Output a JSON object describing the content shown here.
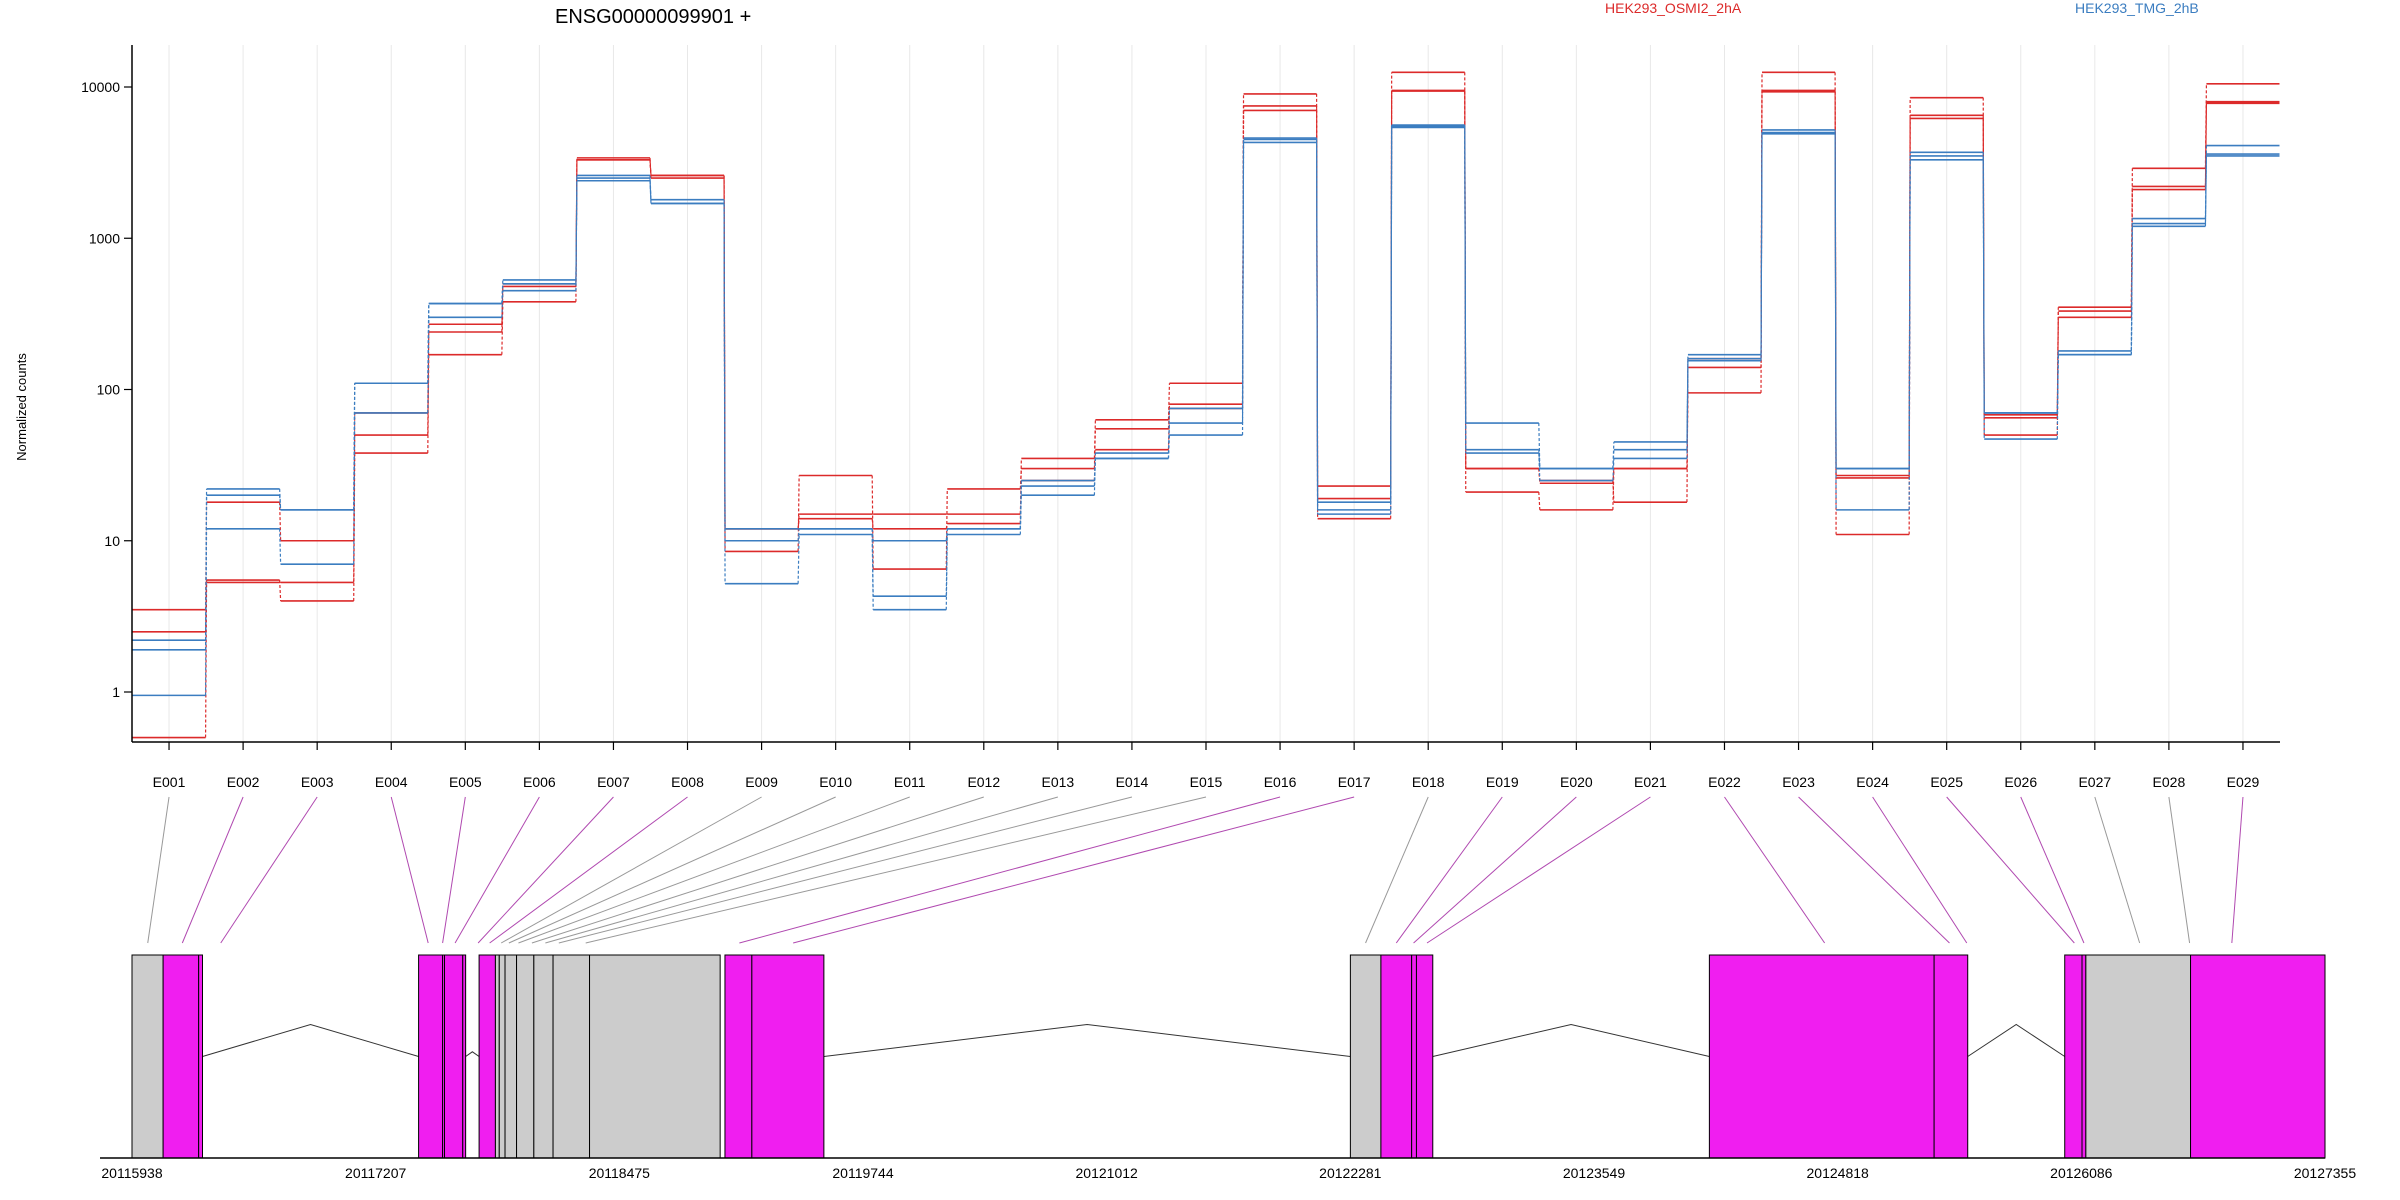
{
  "chart_data": {
    "type": "line",
    "title": "ENSG00000099901 +",
    "ylabel": "Normalized counts",
    "xlabel": "",
    "yscale": "log",
    "ylim": [
      0.5,
      20000
    ],
    "yticks": [
      "1",
      "10",
      "100",
      "1000",
      "10000"
    ],
    "categories": [
      "E001",
      "E002",
      "E003",
      "E004",
      "E005",
      "E006",
      "E007",
      "E008",
      "E009",
      "E010",
      "E011",
      "E012",
      "E013",
      "E014",
      "E015",
      "E016",
      "E017",
      "E018",
      "E019",
      "E020",
      "E021",
      "E022",
      "E023",
      "E024",
      "E025",
      "E026",
      "E027",
      "E028",
      "E029"
    ],
    "legend": [
      {
        "name": "HEK293_OSMI2_2hA",
        "color": "#dc2a2a"
      },
      {
        "name": "HEK293_TMG_2hB",
        "color": "#3b7dc0"
      }
    ],
    "series": [
      {
        "name": "HEK293_OSMI2_2hA",
        "group": 0,
        "values": [
          0.5,
          5.3,
          5.3,
          50,
          240,
          480,
          3300,
          2500,
          12,
          15,
          15,
          15,
          25,
          40,
          75,
          7500,
          19,
          9500,
          30,
          25,
          18,
          160,
          9500,
          27,
          6500,
          68,
          350,
          2100,
          8000
        ]
      },
      {
        "name": "HEK293_OSMI2_2hA",
        "group": 0,
        "values": [
          2.5,
          5.5,
          4.0,
          38,
          170,
          380,
          3400,
          2600,
          8.5,
          27,
          6.5,
          22,
          30,
          55,
          80,
          7000,
          23,
          9400,
          21,
          16,
          30,
          95,
          9300,
          11,
          6200,
          65,
          300,
          2200,
          7800
        ]
      },
      {
        "name": "HEK293_OSMI2_2hA",
        "group": 0,
        "values": [
          3.5,
          18,
          10,
          70,
          270,
          500,
          3300,
          2600,
          12,
          14,
          12,
          13,
          35,
          63,
          110,
          9000,
          14,
          12500,
          30,
          24,
          30,
          140,
          12500,
          26,
          8500,
          50,
          330,
          2900,
          10500
        ]
      },
      {
        "name": "HEK293_TMG_2hB",
        "group": 1,
        "values": [
          0.95,
          20,
          16,
          110,
          370,
          500,
          2600,
          1800,
          12,
          12,
          3.5,
          11,
          23,
          35,
          50,
          4300,
          15,
          5400,
          60,
          30,
          45,
          160,
          4900,
          30,
          3500,
          70,
          170,
          1200,
          3600
        ]
      },
      {
        "name": "HEK293_TMG_2hB",
        "group": 1,
        "values": [
          2.2,
          12,
          7,
          70,
          300,
          450,
          2400,
          1700,
          5.2,
          11,
          4.3,
          12,
          20,
          38,
          60,
          4600,
          18,
          5600,
          40,
          30,
          40,
          170,
          5200,
          16,
          3300,
          47,
          180,
          1350,
          4100
        ]
      },
      {
        "name": "HEK293_TMG_2hB",
        "group": 1,
        "values": [
          1.9,
          22,
          16,
          110,
          370,
          530,
          2500,
          1700,
          10,
          12,
          10,
          12,
          25,
          35,
          75,
          4500,
          16,
          5500,
          38,
          25,
          35,
          155,
          5000,
          30,
          3700,
          70,
          170,
          1250,
          3500
        ]
      }
    ],
    "coordinate_ticks": [
      "20115938",
      "20117207",
      "20118475",
      "20119744",
      "20121012",
      "20122281",
      "20123549",
      "20124818",
      "20126086",
      "20127355"
    ],
    "genomic_range": [
      20115938,
      20127355
    ],
    "exon_bins": [
      {
        "start": 20115938,
        "end": 20116100,
        "tested": false
      },
      {
        "start": 20116100,
        "end": 20116285,
        "tested": true
      },
      {
        "start": 20116285,
        "end": 20116305,
        "tested": true
      },
      {
        "start": 20117430,
        "end": 20117555,
        "tested": true
      },
      {
        "start": 20117555,
        "end": 20117565,
        "tested": true
      },
      {
        "start": 20117565,
        "end": 20117660,
        "tested": true
      },
      {
        "start": 20117660,
        "end": 20117675,
        "tested": true
      },
      {
        "start": 20117745,
        "end": 20117830,
        "tested": true
      },
      {
        "start": 20117830,
        "end": 20117850,
        "tested": false
      },
      {
        "start": 20117850,
        "end": 20117880,
        "tested": false
      },
      {
        "start": 20117880,
        "end": 20117940,
        "tested": false
      },
      {
        "start": 20117940,
        "end": 20118030,
        "tested": false
      },
      {
        "start": 20118030,
        "end": 20118130,
        "tested": false
      },
      {
        "start": 20118130,
        "end": 20118320,
        "tested": false
      },
      {
        "start": 20118320,
        "end": 20119000,
        "tested": false
      },
      {
        "start": 20119025,
        "end": 20119165,
        "tested": true
      },
      {
        "start": 20119165,
        "end": 20119540,
        "tested": true
      },
      {
        "start": 20122281,
        "end": 20122440,
        "tested": false
      },
      {
        "start": 20122440,
        "end": 20122600,
        "tested": true
      },
      {
        "start": 20122600,
        "end": 20122625,
        "tested": true
      },
      {
        "start": 20122625,
        "end": 20122710,
        "tested": true
      },
      {
        "start": 20124150,
        "end": 20125320,
        "tested": true
      },
      {
        "start": 20125320,
        "end": 20125495,
        "tested": true
      },
      {
        "start": 20126000,
        "end": 20126090,
        "tested": true
      },
      {
        "start": 20126090,
        "end": 20126110,
        "tested": true
      },
      {
        "start": 20126110,
        "end": 20126655,
        "tested": false
      },
      {
        "start": 20126655,
        "end": 20127355,
        "tested": true
      }
    ],
    "connectors": [
      {
        "from": "E001",
        "at": 20116020,
        "tested": false
      },
      {
        "from": "E002",
        "at": 20116200,
        "tested": true
      },
      {
        "from": "E003",
        "at": 20116400,
        "tested": true
      },
      {
        "from": "E004",
        "at": 20117480,
        "tested": true
      },
      {
        "from": "E005",
        "at": 20117555,
        "tested": true
      },
      {
        "from": "E006",
        "at": 20117620,
        "tested": true
      },
      {
        "from": "E007",
        "at": 20117740,
        "tested": true
      },
      {
        "from": "E008",
        "at": 20117800,
        "tested": true
      },
      {
        "from": "E009",
        "at": 20117860,
        "tested": false
      },
      {
        "from": "E010",
        "at": 20117900,
        "tested": false
      },
      {
        "from": "E011",
        "at": 20117950,
        "tested": false
      },
      {
        "from": "E012",
        "at": 20118020,
        "tested": false
      },
      {
        "from": "E013",
        "at": 20118090,
        "tested": false
      },
      {
        "from": "E014",
        "at": 20118160,
        "tested": false
      },
      {
        "from": "E015",
        "at": 20118300,
        "tested": false
      },
      {
        "from": "E016",
        "at": 20119100,
        "tested": true
      },
      {
        "from": "E017",
        "at": 20119380,
        "tested": true
      },
      {
        "from": "E018",
        "at": 20122360,
        "tested": false
      },
      {
        "from": "E019",
        "at": 20122520,
        "tested": true
      },
      {
        "from": "E020",
        "at": 20122610,
        "tested": true
      },
      {
        "from": "E021",
        "at": 20122680,
        "tested": true
      },
      {
        "from": "E022",
        "at": 20124750,
        "tested": true
      },
      {
        "from": "E023",
        "at": 20125400,
        "tested": true
      },
      {
        "from": "E024",
        "at": 20125490,
        "tested": true
      },
      {
        "from": "E025",
        "at": 20126050,
        "tested": true
      },
      {
        "from": "E026",
        "at": 20126100,
        "tested": true
      },
      {
        "from": "E027",
        "at": 20126390,
        "tested": false
      },
      {
        "from": "E028",
        "at": 20126650,
        "tested": false
      },
      {
        "from": "E029",
        "at": 20126870,
        "tested": true
      }
    ],
    "colors": {
      "exon_tested": "#f01ef0",
      "exon_untested": "#cccccc",
      "connector_tested": "#b049b0",
      "connector_untested": "#999999",
      "gridline": "#e8e8e8"
    }
  }
}
